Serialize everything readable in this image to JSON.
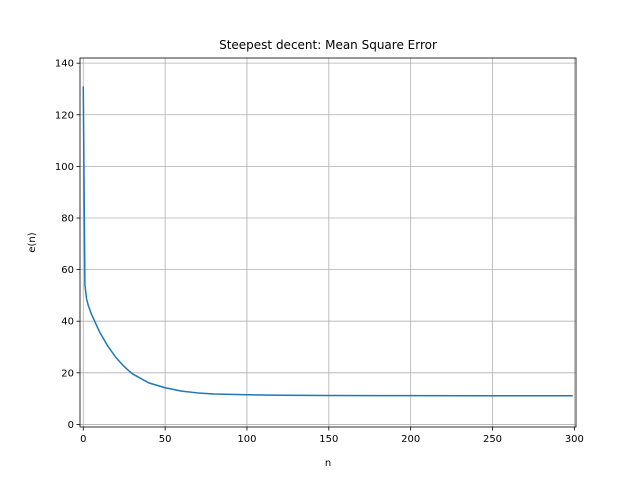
{
  "chart_data": {
    "type": "line",
    "title": "Steepest decent: Mean Square Error",
    "xlabel": "n",
    "ylabel": "e(n)",
    "xlim": [
      -2,
      301
    ],
    "ylim": [
      -1,
      142
    ],
    "xticks": [
      0,
      50,
      100,
      150,
      200,
      250,
      300
    ],
    "yticks": [
      0,
      20,
      40,
      60,
      80,
      100,
      120,
      140
    ],
    "grid": true,
    "colors": {
      "line": "#1f77b4",
      "grid": "#b0b0b0"
    },
    "series": [
      {
        "x": [
          0,
          1,
          2,
          3,
          5,
          10,
          15,
          20,
          25,
          30,
          40,
          50,
          60,
          70,
          80,
          100,
          120,
          150,
          200,
          250,
          299
        ],
        "values": [
          131,
          54,
          48.7,
          46.2,
          42.7,
          35.8,
          30.3,
          25.9,
          22.4,
          19.6,
          16.1,
          14.2,
          12.9,
          12.2,
          11.8,
          11.5,
          11.3,
          11.2,
          11.15,
          11.1,
          11.1
        ]
      }
    ]
  }
}
